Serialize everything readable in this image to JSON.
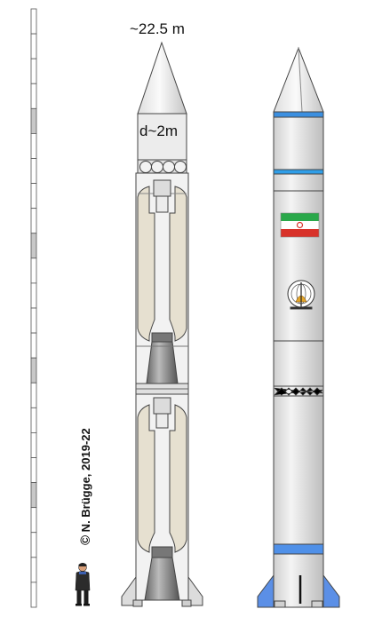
{
  "labels": {
    "length": "~22.5 m",
    "diameter": "d~2m",
    "copyright_symbol": "©",
    "copyright": "N. Brügge, 2019-22"
  },
  "scale_bar": {
    "segments": 24,
    "shaded_segments": [
      4,
      9,
      14,
      19
    ]
  },
  "icons": [
    "human-figure-icon",
    "iran-flag-icon",
    "space-agency-emblem-icon"
  ],
  "colors": {
    "outline": "#444444",
    "body_fill": "#e8e8e8",
    "tank_fill": "#e6e0d0",
    "engine": "#777777",
    "stripe_blue": "#3b8fe0",
    "fin_blue": "#5b8fe6",
    "flag_green": "#2aa84a",
    "flag_red": "#d8322a"
  }
}
